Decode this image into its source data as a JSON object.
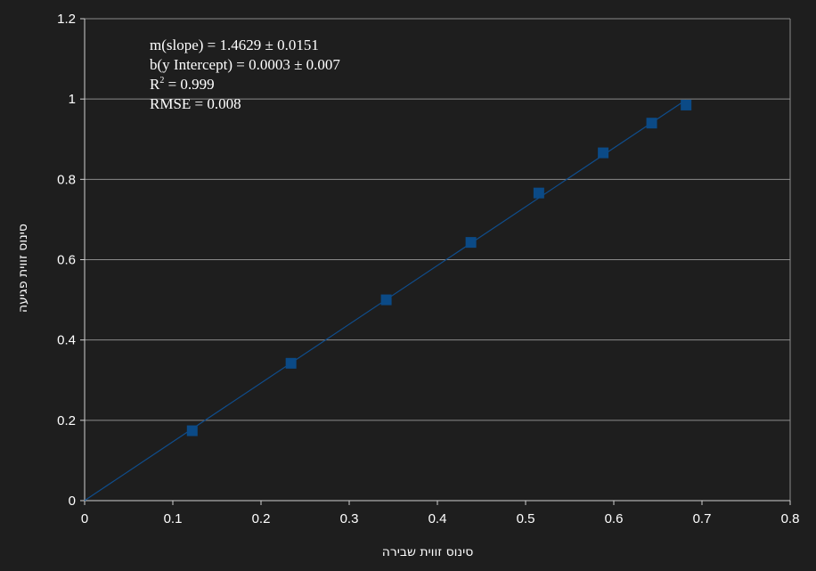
{
  "chart_data": {
    "type": "scatter",
    "x": [
      0.122,
      0.234,
      0.342,
      0.438,
      0.515,
      0.588,
      0.643,
      0.682
    ],
    "y": [
      0.174,
      0.342,
      0.5,
      0.643,
      0.766,
      0.866,
      0.94,
      0.985
    ],
    "xlabel": "סינוס זווית שבירה",
    "ylabel": "סינוס זווית פגיעה",
    "xlim": [
      0,
      0.8
    ],
    "ylim": [
      0,
      1.2
    ],
    "x_ticks": [
      "0",
      "0.1",
      "0.2",
      "0.3",
      "0.4",
      "0.5",
      "0.6",
      "0.7",
      "0.8"
    ],
    "y_ticks": [
      "0",
      "0.2",
      "0.4",
      "0.6",
      "0.8",
      "1",
      "1.2"
    ],
    "grid": "horizontal",
    "fit": {
      "slope": 1.4629,
      "intercept": 0.0003,
      "line_1": "m(slope) = 1.4629 ± 0.0151",
      "line_2": "b(y Intercept) = 0.0003 ± 0.007",
      "line_3_base": "R",
      "line_3_sup": "2",
      "line_3_rest": " = 0.999",
      "line_4": "RMSE = 0.008"
    },
    "colors": {
      "background": "#1e1e1e",
      "grid": "#8a8a8a",
      "axis": "#d0d0d0",
      "marker": "#0b4a86",
      "fit_line": "#0f4d8c",
      "text": "#ffffff"
    }
  }
}
